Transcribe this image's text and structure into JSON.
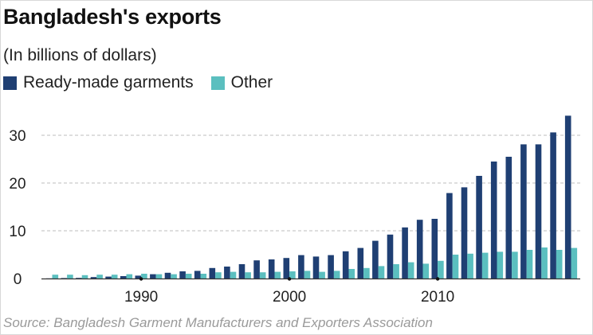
{
  "header": {
    "title": "Bangladesh's exports",
    "subtitle": "(In billions of dollars)"
  },
  "legend": {
    "items": [
      {
        "label": "Ready-made garments",
        "color": "#1f3f73"
      },
      {
        "label": "Other",
        "color": "#5bbfbf"
      }
    ]
  },
  "source": "Source: Bangladesh Garment Manufacturers and Exporters Association",
  "chart_data": {
    "type": "bar",
    "categories": [
      "1984",
      "1985",
      "1986",
      "1987",
      "1988",
      "1989",
      "1990",
      "1991",
      "1992",
      "1993",
      "1994",
      "1995",
      "1996",
      "1997",
      "1998",
      "1999",
      "2000",
      "2001",
      "2002",
      "2003",
      "2004",
      "2005",
      "2006",
      "2007",
      "2008",
      "2009",
      "2010",
      "2011",
      "2012",
      "2013",
      "2014",
      "2015",
      "2016",
      "2017",
      "2018",
      "2019"
    ],
    "series": [
      {
        "name": "Ready-made garments",
        "color": "#1f3f73",
        "values": [
          0.03,
          0.1,
          0.13,
          0.3,
          0.4,
          0.5,
          0.6,
          0.9,
          1.2,
          1.5,
          1.6,
          2.2,
          2.5,
          3.0,
          3.8,
          4.0,
          4.3,
          4.9,
          4.6,
          4.9,
          5.7,
          6.4,
          7.9,
          9.2,
          10.7,
          12.3,
          12.5,
          17.9,
          19.1,
          21.5,
          24.5,
          25.5,
          28.1,
          28.1,
          30.6,
          34.1
        ]
      },
      {
        "name": "Other",
        "color": "#5bbfbf",
        "values": [
          0.8,
          0.8,
          0.7,
          0.8,
          0.8,
          0.9,
          1.0,
          0.9,
          0.9,
          1.0,
          1.0,
          1.3,
          1.4,
          1.3,
          1.3,
          1.4,
          1.5,
          1.6,
          1.4,
          1.6,
          2.0,
          2.2,
          2.6,
          3.0,
          3.4,
          3.1,
          3.7,
          5.0,
          5.2,
          5.4,
          5.6,
          5.6,
          6.0,
          6.5,
          6.0,
          6.4
        ]
      }
    ],
    "x_ticks": [
      "1990",
      "2000",
      "2010"
    ],
    "y_ticks": [
      0,
      10,
      20,
      30
    ],
    "ylim": [
      0,
      35
    ],
    "grid": true,
    "legend_position": "top-left"
  }
}
